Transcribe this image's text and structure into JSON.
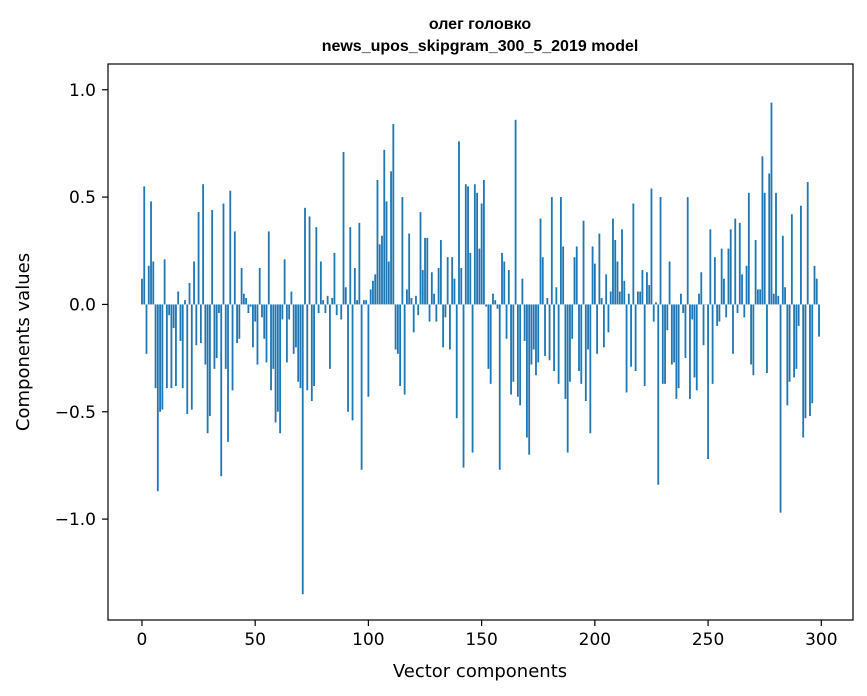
{
  "chart_data": {
    "type": "bar",
    "title_line1": "олег головко",
    "title_line2": "news_upos_skipgram_300_5_2019 model",
    "xlabel": "Vector components",
    "ylabel": "Components values",
    "xlim": [
      -15,
      314
    ],
    "ylim": [
      -1.47,
      1.12
    ],
    "x_ticks": [
      0,
      50,
      100,
      150,
      200,
      250,
      300
    ],
    "x_tick_labels": [
      "0",
      "50",
      "100",
      "150",
      "200",
      "250",
      "300"
    ],
    "y_ticks": [
      -1.0,
      -0.5,
      0.0,
      0.5,
      1.0
    ],
    "y_tick_labels": [
      "−1.0",
      "−0.5",
      "0.0",
      "0.5",
      "1.0"
    ],
    "bar_color": "#1f77b4",
    "grid": false,
    "legend": "none",
    "values": [
      0.12,
      0.55,
      -0.23,
      0.18,
      0.48,
      0.2,
      -0.39,
      -0.87,
      -0.5,
      -0.49,
      0.21,
      -0.39,
      -0.05,
      -0.39,
      -0.11,
      -0.38,
      0.06,
      -0.17,
      -0.39,
      0.02,
      -0.51,
      0.1,
      -0.49,
      0.2,
      -0.19,
      0.43,
      -0.18,
      0.56,
      -0.28,
      -0.6,
      -0.52,
      0.44,
      -0.3,
      -0.25,
      -0.04,
      -0.8,
      0.47,
      -0.3,
      -0.64,
      0.53,
      -0.4,
      0.34,
      -0.18,
      -0.16,
      0.17,
      0.05,
      0.03,
      -0.04,
      -0.01,
      -0.2,
      -0.08,
      -0.28,
      0.17,
      -0.06,
      -0.16,
      -0.27,
      0.34,
      -0.4,
      -0.3,
      -0.55,
      -0.5,
      -0.6,
      -0.07,
      0.21,
      -0.27,
      -0.07,
      0.06,
      -0.23,
      -0.2,
      -0.36,
      -0.39,
      -1.35,
      0.45,
      -0.4,
      0.41,
      -0.45,
      -0.38,
      0.36,
      -0.04,
      0.2,
      0.02,
      -0.04,
      0.04,
      -0.3,
      0.03,
      0.24,
      -0.05,
      0.0,
      -0.07,
      0.71,
      0.08,
      -0.5,
      0.36,
      -0.54,
      0.17,
      0.02,
      0.38,
      -0.77,
      0.02,
      0.02,
      -0.43,
      0.07,
      0.11,
      0.14,
      0.58,
      0.28,
      0.32,
      0.72,
      0.48,
      0.2,
      0.62,
      0.84,
      -0.21,
      -0.23,
      -0.38,
      0.5,
      -0.42,
      0.07,
      0.33,
      0.03,
      -0.13,
      0.04,
      -0.05,
      0.43,
      0.16,
      0.31,
      0.31,
      -0.08,
      0.15,
      0.05,
      -0.08,
      0.17,
      0.3,
      -0.2,
      -0.06,
      0.22,
      -0.21,
      0.22,
      0.12,
      -0.53,
      0.76,
      0.17,
      -0.76,
      0.56,
      0.55,
      0.24,
      -0.69,
      0.56,
      0.52,
      0.26,
      0.47,
      0.58,
      -0.01,
      -0.3,
      -0.37,
      0.05,
      0.02,
      -0.02,
      -0.77,
      0.24,
      0.2,
      -0.16,
      0.16,
      -0.42,
      -0.36,
      0.86,
      -0.43,
      -0.47,
      0.12,
      -0.17,
      -0.62,
      -0.7,
      -0.28,
      -0.21,
      -0.33,
      -0.27,
      0.4,
      0.22,
      -0.24,
      0.03,
      -0.26,
      0.5,
      -0.31,
      0.08,
      -0.37,
      0.5,
      0.27,
      -0.44,
      -0.69,
      -0.36,
      -0.16,
      0.22,
      0.27,
      -0.31,
      -0.37,
      0.39,
      -0.45,
      -0.21,
      -0.6,
      0.27,
      0.19,
      -0.23,
      0.33,
      0.03,
      -0.2,
      0.14,
      -0.13,
      0.06,
      0.4,
      0.3,
      0.2,
      0.06,
      0.35,
      0.11,
      -0.41,
      0.05,
      -0.29,
      0.47,
      -0.31,
      0.06,
      0.06,
      0.16,
      -0.38,
      0.15,
      0.09,
      0.54,
      -0.08,
      0.01,
      -0.84,
      0.5,
      -0.37,
      -0.37,
      -0.12,
      0.2,
      -0.28,
      -0.27,
      -0.44,
      -0.39,
      0.05,
      -0.04,
      -0.25,
      0.5,
      -0.44,
      -0.07,
      -0.34,
      -0.4,
      0.05,
      0.15,
      -0.19,
      0.0,
      -0.72,
      0.35,
      -0.37,
      0.22,
      -0.1,
      -0.08,
      0.26,
      0.12,
      -0.06,
      0.26,
      0.35,
      -0.23,
      0.4,
      -0.04,
      0.38,
      0.14,
      -0.06,
      0.18,
      0.52,
      -0.28,
      -0.33,
      0.3,
      0.07,
      0.07,
      0.69,
      0.52,
      -0.32,
      0.61,
      0.94,
      0.05,
      0.52,
      0.04,
      -0.97,
      0.32,
      0.08,
      -0.47,
      -0.36,
      0.42,
      -0.34,
      -0.3,
      -0.1,
      0.46,
      -0.62,
      -0.53,
      0.57,
      -0.52,
      -0.46,
      0.18,
      0.12,
      -0.15
    ]
  }
}
